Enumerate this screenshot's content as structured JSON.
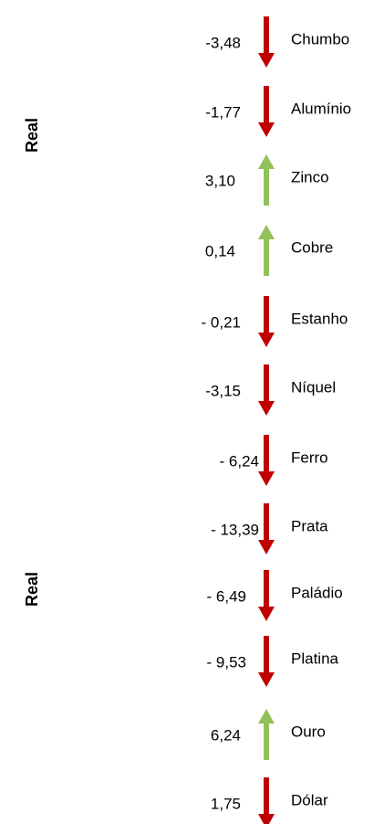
{
  "side_labels": [
    "Real",
    "Real"
  ],
  "items": [
    {
      "value": "-3,48",
      "name": "Chumbo",
      "direction": "down"
    },
    {
      "value": "-1,77",
      "name": "Alumínio",
      "direction": "down"
    },
    {
      "value": "3,10",
      "name": "Zinco",
      "direction": "up"
    },
    {
      "value": "0,14",
      "name": "Cobre",
      "direction": "up"
    },
    {
      "value": "- 0,21",
      "name": "Estanho",
      "direction": "down"
    },
    {
      "value": "-3,15",
      "name": "Níquel",
      "direction": "down"
    },
    {
      "value": "- 6,24",
      "name": "Ferro",
      "direction": "down"
    },
    {
      "value": "- 13,39",
      "name": "Prata",
      "direction": "down"
    },
    {
      "value": "- 6,49",
      "name": "Paládio",
      "direction": "down"
    },
    {
      "value": "- 9,53",
      "name": "Platina",
      "direction": "down"
    },
    {
      "value": "6,24",
      "name": "Ouro",
      "direction": "up"
    },
    {
      "value": "1,75",
      "name": "Dólar",
      "direction": "down"
    }
  ],
  "colors": {
    "down": "#c00000",
    "up": "#92c05a"
  }
}
